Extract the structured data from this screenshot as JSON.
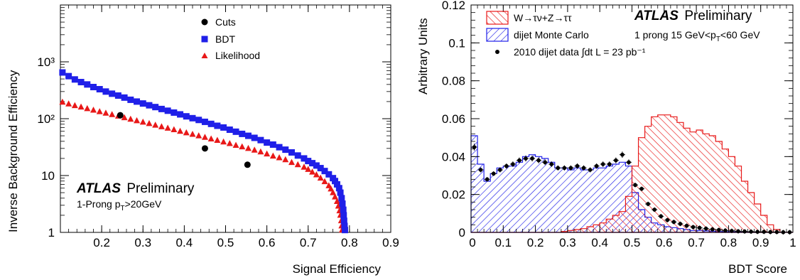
{
  "chart_data": [
    {
      "type": "scatter",
      "xlabel": "Signal Efficiency",
      "ylabel": "Inverse Background Efficiency",
      "xlim": [
        0.1,
        0.9
      ],
      "ylim": [
        1,
        10000
      ],
      "yscale": "log",
      "x_ticks": [
        "0.2",
        "0.3",
        "0.4",
        "0.5",
        "0.6",
        "0.7",
        "0.8",
        "0.9"
      ],
      "y_ticks": [
        "1",
        "10",
        "10²",
        "10³"
      ],
      "legend_position": "top-right",
      "brand": "ATLAS",
      "brand_suffix": "Preliminary",
      "annotation": "1-Prong p",
      "annotation_sub": "T",
      "annotation_tail": ">20GeV",
      "series": [
        {
          "name": "Cuts",
          "color": "#000000",
          "marker": "circle",
          "points": [
            [
              0.245,
              115
            ],
            [
              0.45,
              30
            ],
            [
              0.553,
              15.5
            ]
          ]
        },
        {
          "name": "BDT",
          "color": "#1f1fe8",
          "marker": "square",
          "points": [
            [
              0.105,
              650
            ],
            [
              0.12,
              560
            ],
            [
              0.135,
              490
            ],
            [
              0.15,
              440
            ],
            [
              0.165,
              400
            ],
            [
              0.18,
              360
            ],
            [
              0.195,
              330
            ],
            [
              0.21,
              300
            ],
            [
              0.225,
              275
            ],
            [
              0.24,
              255
            ],
            [
              0.255,
              235
            ],
            [
              0.27,
              215
            ],
            [
              0.285,
              200
            ],
            [
              0.3,
              185
            ],
            [
              0.315,
              172
            ],
            [
              0.33,
              160
            ],
            [
              0.345,
              148
            ],
            [
              0.36,
              138
            ],
            [
              0.375,
              128
            ],
            [
              0.39,
              119
            ],
            [
              0.405,
              110
            ],
            [
              0.42,
              102
            ],
            [
              0.435,
              95
            ],
            [
              0.45,
              88
            ],
            [
              0.465,
              81
            ],
            [
              0.48,
              75
            ],
            [
              0.495,
              70
            ],
            [
              0.51,
              64
            ],
            [
              0.525,
              59
            ],
            [
              0.54,
              54
            ],
            [
              0.555,
              50
            ],
            [
              0.57,
              46
            ],
            [
              0.585,
              42
            ],
            [
              0.6,
              38
            ],
            [
              0.615,
              35
            ],
            [
              0.63,
              31.5
            ],
            [
              0.645,
              28.5
            ],
            [
              0.66,
              25.5
            ],
            [
              0.675,
              22.5
            ],
            [
              0.69,
              20
            ],
            [
              0.7,
              18
            ],
            [
              0.71,
              16.5
            ],
            [
              0.72,
              15
            ],
            [
              0.73,
              13.5
            ],
            [
              0.74,
              12
            ],
            [
              0.75,
              10.5
            ],
            [
              0.76,
              9
            ],
            [
              0.765,
              8
            ],
            [
              0.77,
              7
            ],
            [
              0.775,
              6
            ],
            [
              0.778,
              5
            ],
            [
              0.781,
              4
            ],
            [
              0.783,
              3.2
            ],
            [
              0.785,
              2.5
            ],
            [
              0.786,
              2
            ],
            [
              0.787,
              1.6
            ],
            [
              0.788,
              1.3
            ],
            [
              0.789,
              1.1
            ]
          ]
        },
        {
          "name": "Likelihood",
          "color": "#e81818",
          "marker": "triangle",
          "points": [
            [
              0.105,
              195
            ],
            [
              0.12,
              182
            ],
            [
              0.135,
              170
            ],
            [
              0.15,
              160
            ],
            [
              0.165,
              150
            ],
            [
              0.18,
              141
            ],
            [
              0.195,
              133
            ],
            [
              0.21,
              125
            ],
            [
              0.225,
              118
            ],
            [
              0.24,
              111
            ],
            [
              0.255,
              104
            ],
            [
              0.27,
              98
            ],
            [
              0.285,
              92
            ],
            [
              0.3,
              87
            ],
            [
              0.315,
              82
            ],
            [
              0.33,
              77
            ],
            [
              0.345,
              72
            ],
            [
              0.36,
              68
            ],
            [
              0.375,
              64
            ],
            [
              0.39,
              60
            ],
            [
              0.405,
              56.5
            ],
            [
              0.42,
              53
            ],
            [
              0.435,
              50
            ],
            [
              0.45,
              47
            ],
            [
              0.465,
              44
            ],
            [
              0.48,
              41.5
            ],
            [
              0.495,
              39
            ],
            [
              0.51,
              36.5
            ],
            [
              0.525,
              34
            ],
            [
              0.54,
              32
            ],
            [
              0.555,
              30
            ],
            [
              0.57,
              28
            ],
            [
              0.585,
              26
            ],
            [
              0.6,
              24
            ],
            [
              0.615,
              22
            ],
            [
              0.63,
              20.5
            ],
            [
              0.645,
              19
            ],
            [
              0.66,
              17
            ],
            [
              0.675,
              15.5
            ],
            [
              0.69,
              14
            ],
            [
              0.7,
              12.8
            ],
            [
              0.71,
              11.5
            ],
            [
              0.72,
              10.3
            ],
            [
              0.73,
              9
            ],
            [
              0.74,
              7.8
            ],
            [
              0.75,
              6.6
            ],
            [
              0.755,
              5.8
            ],
            [
              0.76,
              5
            ],
            [
              0.765,
              4.2
            ],
            [
              0.77,
              3.5
            ],
            [
              0.773,
              2.9
            ],
            [
              0.776,
              2.4
            ],
            [
              0.778,
              2
            ],
            [
              0.78,
              1.6
            ],
            [
              0.781,
              1.3
            ],
            [
              0.782,
              1.1
            ]
          ]
        }
      ]
    },
    {
      "type": "histogram",
      "xlabel": "BDT Score",
      "ylabel": "Arbitrary Units",
      "xlim": [
        0,
        1
      ],
      "ylim": [
        0,
        0.12
      ],
      "x_ticks": [
        "0",
        "0.1",
        "0.2",
        "0.3",
        "0.4",
        "0.5",
        "0.6",
        "0.7",
        "0.8",
        "0.9",
        "1"
      ],
      "y_ticks": [
        "0",
        "0.02",
        "0.04",
        "0.06",
        "0.08",
        "0.1",
        "0.12"
      ],
      "legend_position": "top-left",
      "brand": "ATLAS",
      "brand_suffix": "Preliminary",
      "annotation": "1 prong 15 GeV<p",
      "annotation_sub": "T",
      "annotation_tail": "<60 GeV",
      "bin_width": 0.02,
      "series": [
        {
          "name": "W→τν+Z→ττ",
          "color": "#e81818",
          "style": "hatched",
          "values": [
            0,
            0,
            0,
            0,
            0,
            0,
            0,
            0,
            0,
            0,
            0,
            0,
            0,
            0,
            0.0005,
            0.001,
            0.0015,
            0.002,
            0.003,
            0.004,
            0.005,
            0.007,
            0.009,
            0.011,
            0.019,
            0.035,
            0.05,
            0.056,
            0.061,
            0.062,
            0.062,
            0.061,
            0.058,
            0.055,
            0.053,
            0.054,
            0.052,
            0.051,
            0.048,
            0.044,
            0.04,
            0.035,
            0.027,
            0.021,
            0.015,
            0.009,
            0.004,
            0.0015,
            0,
            0
          ]
        },
        {
          "name": "dijet Monte Carlo",
          "color": "#1f1fe8",
          "style": "hatched",
          "values": [
            0.051,
            0.036,
            0.027,
            0.031,
            0.034,
            0.035,
            0.035,
            0.037,
            0.04,
            0.041,
            0.04,
            0.039,
            0.037,
            0.034,
            0.034,
            0.033,
            0.034,
            0.033,
            0.033,
            0.034,
            0.034,
            0.035,
            0.036,
            0.037,
            0.035,
            0.021,
            0.012,
            0.008,
            0.005,
            0.004,
            0.003,
            0.0025,
            0.002,
            0.0015,
            0.001,
            0.001,
            0.0008,
            0.0006,
            0.0005,
            0.0004,
            0.0003,
            0.0002,
            0.0001,
            0.0001,
            0,
            0,
            0,
            0,
            0,
            0
          ]
        },
        {
          "name": "2010 dijet data ∫dt L = 23 pb⁻¹",
          "color": "#000000",
          "style": "points",
          "values": [
            0.045,
            0.033,
            0.028,
            0.031,
            0.033,
            0.035,
            0.036,
            0.038,
            0.039,
            0.039,
            0.038,
            0.037,
            0.036,
            0.034,
            0.034,
            0.034,
            0.035,
            0.034,
            0.033,
            0.035,
            0.036,
            0.036,
            0.038,
            0.041,
            0.037,
            0.025,
            0.023,
            0.015,
            0.012,
            0.0085,
            0.0065,
            0.0055,
            0.0045,
            0.0035,
            0.0028,
            0.0024,
            0.002,
            0.0016,
            0.0013,
            0.001,
            0.0008,
            0.0006,
            0.0005,
            0.0004,
            0.0003,
            0.0003,
            0.0002,
            0.0002,
            0.0001,
            0.0001
          ]
        }
      ]
    }
  ]
}
